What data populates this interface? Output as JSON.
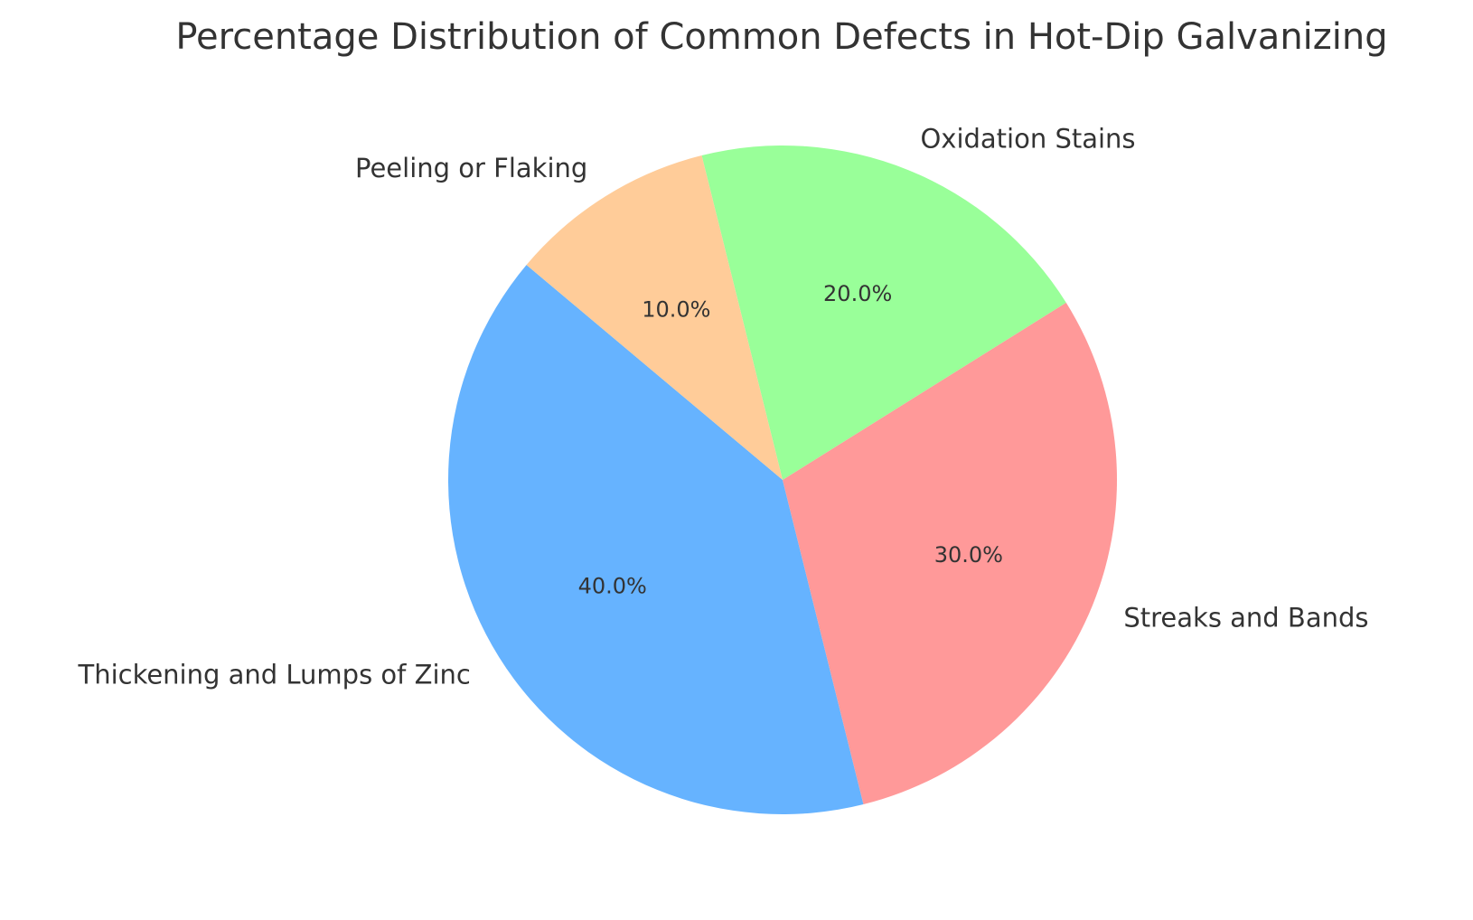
{
  "chart_data": {
    "type": "pie",
    "title": "Percentage Distribution of Common Defects in Hot-Dip Galvanizing",
    "categories": [
      "Thickening and Lumps of Zinc",
      "Streaks and Bands",
      "Oxidation Stains",
      "Peeling or Flaking"
    ],
    "values": [
      40.0,
      30.0,
      20.0,
      10.0
    ],
    "percent_labels": [
      "40.0%",
      "30.0%",
      "20.0%",
      "10.0%"
    ],
    "colors": [
      "#66b3ff",
      "#ff9999",
      "#99ff99",
      "#ffcc99"
    ],
    "start_angle_deg": 140,
    "direction": "counterclockwise",
    "legend": "none"
  }
}
